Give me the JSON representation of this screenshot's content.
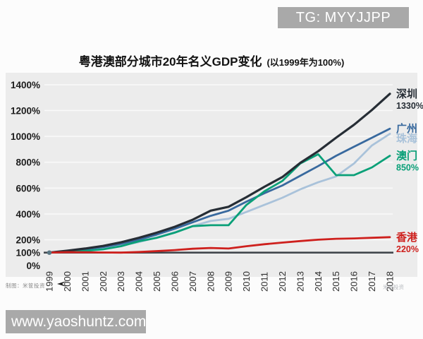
{
  "watermarks": {
    "telegram": "TG: MYYJJPP",
    "website": "www.yaoshuntz.com",
    "credit": "制图：米筐投资",
    "faint": "米筐投资"
  },
  "chart_data": {
    "type": "line",
    "title": "粤港澳部分城市20年名义GDP变化",
    "subtitle": "(以1999年为100%)",
    "x": [
      "1999",
      "2000",
      "2001",
      "2002",
      "2003",
      "2004",
      "2005",
      "2006",
      "2007",
      "2008",
      "2009",
      "2010",
      "2011",
      "2012",
      "2013",
      "2014",
      "2015",
      "2016",
      "2017",
      "2018"
    ],
    "xlabel": "",
    "ylabel": "",
    "ylim": [
      0,
      1400
    ],
    "yticks": [
      0,
      100,
      200,
      400,
      600,
      800,
      1000,
      1200,
      1400
    ],
    "ytick_suffix": "%",
    "grid": true,
    "legend_position": "right-of-lines",
    "baseline": {
      "value": 100,
      "label": "100%"
    },
    "colors": {
      "plot_background": "#ececec",
      "gridline": "#f9f9f9",
      "baseline": "#42474d",
      "axis_text": "#1c1c1c",
      "watermark_gray": "#a9a9a9"
    },
    "series": [
      {
        "id": "shenzhen",
        "name": "深圳",
        "color": "#262d35",
        "end_label": "1330%",
        "values": [
          100,
          115,
          132,
          152,
          180,
          215,
          255,
          300,
          355,
          425,
          455,
          530,
          610,
          685,
          795,
          885,
          990,
          1090,
          1205,
          1330
        ]
      },
      {
        "id": "guangzhou",
        "name": "广州",
        "color": "#38699e",
        "end_label": "",
        "values": [
          100,
          112,
          126,
          144,
          168,
          200,
          240,
          285,
          335,
          385,
          425,
          495,
          560,
          620,
          695,
          770,
          850,
          920,
          990,
          1060
        ]
      },
      {
        "id": "zhuhai",
        "name": "珠海",
        "color": "#a9c2da",
        "end_label": "",
        "values": [
          100,
          110,
          122,
          137,
          156,
          182,
          218,
          258,
          305,
          345,
          362,
          415,
          470,
          525,
          590,
          645,
          690,
          790,
          930,
          1020
        ]
      },
      {
        "id": "macau",
        "name": "澳门",
        "color": "#0aa078",
        "end_label": "850%",
        "values": [
          100,
          106,
          113,
          126,
          150,
          188,
          215,
          255,
          305,
          312,
          312,
          470,
          575,
          655,
          790,
          862,
          700,
          700,
          760,
          850
        ]
      },
      {
        "id": "hongkong",
        "name": "香港",
        "color": "#ce201d",
        "end_label": "220%",
        "values": [
          100,
          104,
          103,
          101,
          100,
          105,
          112,
          120,
          130,
          136,
          132,
          150,
          165,
          178,
          190,
          200,
          207,
          210,
          215,
          220
        ]
      }
    ]
  }
}
